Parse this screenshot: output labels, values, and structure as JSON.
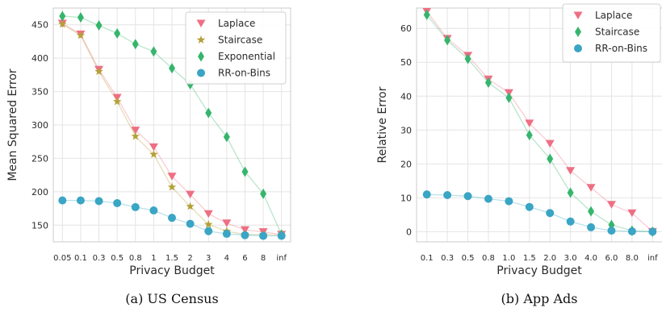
{
  "chart_data": [
    {
      "type": "line",
      "caption": "(a) US Census",
      "xlabel": "Privacy Budget",
      "ylabel": "Mean Squared Error",
      "categories": [
        "0.05",
        "0.1",
        "0.3",
        "0.5",
        "0.8",
        "1",
        "1.5",
        "2",
        "3",
        "4",
        "6",
        "8",
        "inf"
      ],
      "ylim": [
        125,
        475
      ],
      "yticks": [
        150,
        200,
        250,
        300,
        350,
        400,
        450
      ],
      "grid": true,
      "legend_position": "top-right",
      "series": [
        {
          "name": "Laplace",
          "marker": "triangle-down",
          "color": "#ee6f83",
          "values": [
            452,
            436,
            383,
            341,
            292,
            267,
            223,
            196,
            167,
            153,
            143,
            140,
            136
          ]
        },
        {
          "name": "Staircase",
          "marker": "star",
          "color": "#b4a036",
          "values": [
            451,
            434,
            380,
            335,
            283,
            256,
            207,
            178,
            151,
            141,
            136,
            136,
            135
          ]
        },
        {
          "name": "Exponential",
          "marker": "diamond",
          "color": "#36b56c",
          "values": [
            463,
            461,
            449,
            437,
            421,
            410,
            385,
            361,
            318,
            282,
            230,
            197,
            136
          ]
        },
        {
          "name": "RR-on-Bins",
          "marker": "circle",
          "color": "#3aa5c4",
          "values": [
            187,
            187,
            186,
            183,
            177,
            172,
            161,
            152,
            141,
            137,
            135,
            134,
            134
          ]
        }
      ]
    },
    {
      "type": "line",
      "caption": "(b) App Ads",
      "xlabel": "Privacy Budget",
      "ylabel": "Relative Error",
      "categories": [
        "0.1",
        "0.3",
        "0.5",
        "0.8",
        "1.0",
        "1.5",
        "2.0",
        "3.0",
        "4.0",
        "6.0",
        "8.0",
        "inf"
      ],
      "ylim": [
        -3,
        66
      ],
      "yticks": [
        0,
        10,
        20,
        30,
        40,
        50,
        60
      ],
      "grid": true,
      "legend_position": "top-right",
      "series": [
        {
          "name": "Laplace",
          "marker": "triangle-down",
          "color": "#ee6f83",
          "values": [
            65,
            57,
            52,
            45,
            41,
            32,
            26,
            18,
            13,
            8,
            5.5,
            0
          ]
        },
        {
          "name": "Staircase",
          "marker": "diamond",
          "color": "#36b56c",
          "values": [
            64,
            56.5,
            51,
            44,
            39.5,
            28.5,
            21.5,
            11.5,
            6,
            2,
            0.3,
            0
          ]
        },
        {
          "name": "RR-on-Bins",
          "marker": "circle",
          "color": "#3aa5c4",
          "values": [
            11,
            10.8,
            10.5,
            9.7,
            9,
            7.3,
            5.5,
            3,
            1.3,
            0.3,
            0.1,
            0
          ]
        }
      ]
    }
  ]
}
